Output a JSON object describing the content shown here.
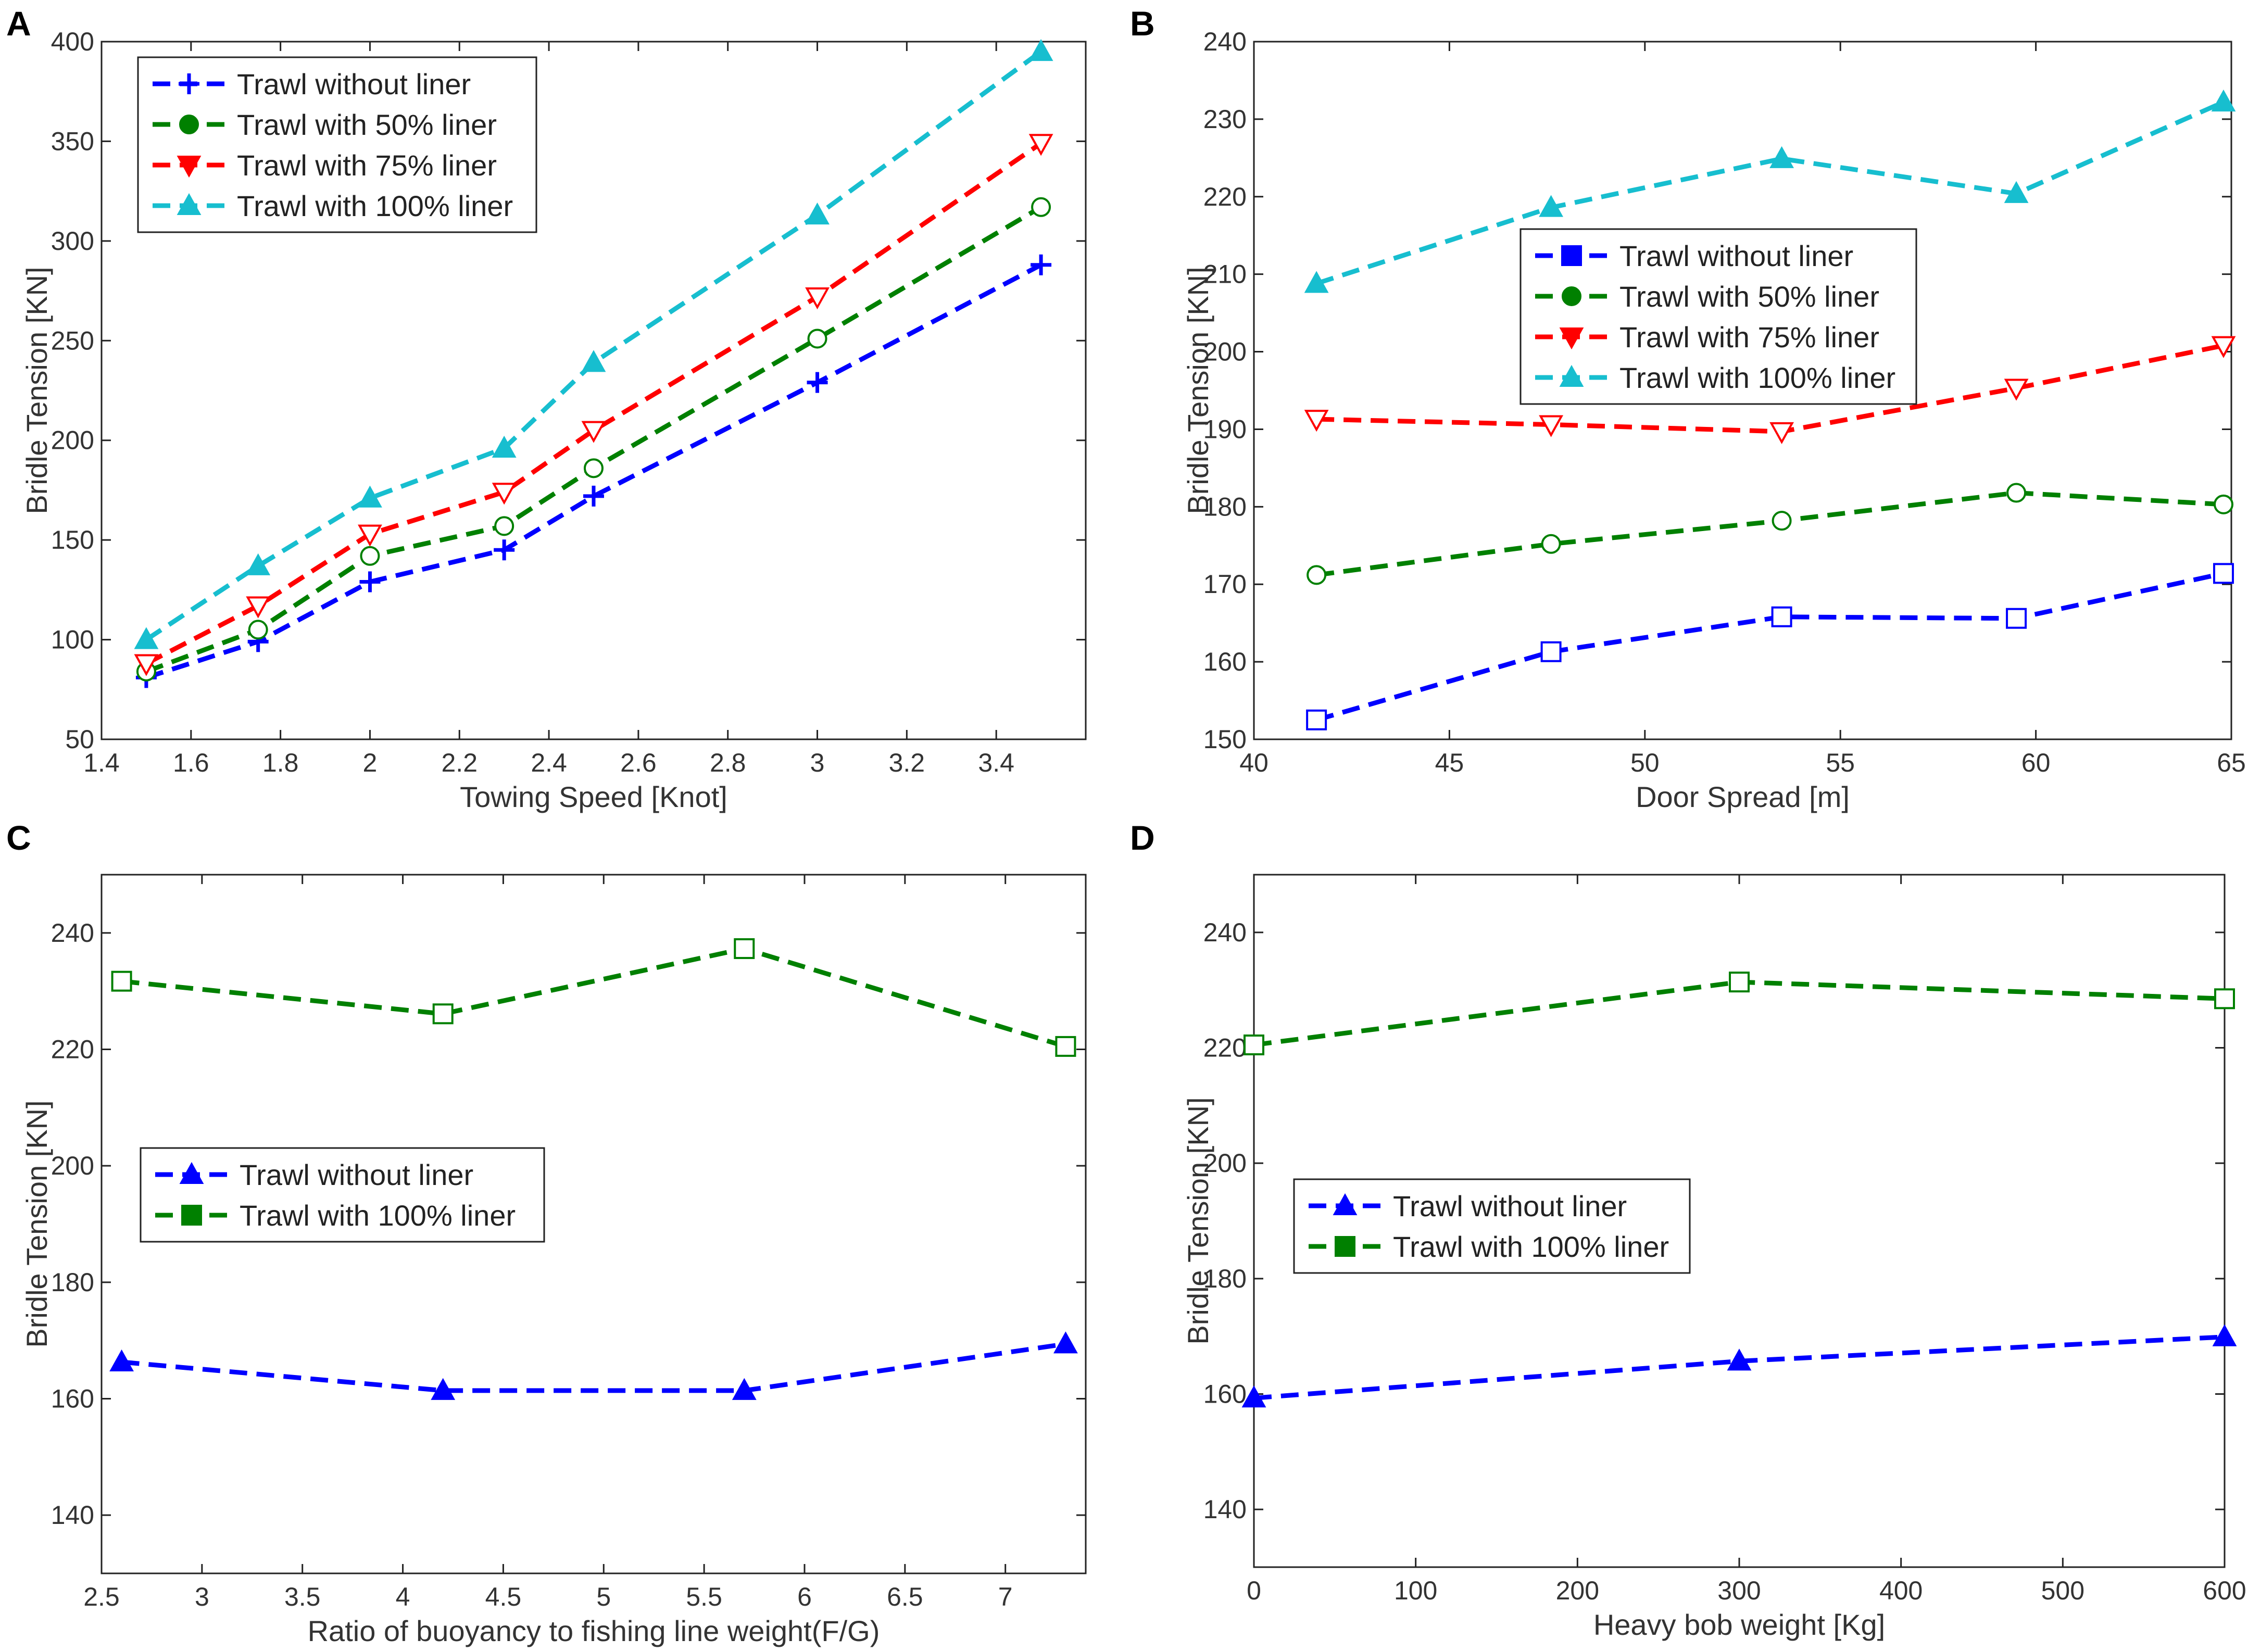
{
  "chart_data": [
    {
      "panel": "A",
      "type": "line",
      "xlabel": "Towing Speed [Knot]",
      "ylabel": "Bridle Tension [KN]",
      "xlim": [
        1.4,
        3.6
      ],
      "ylim": [
        50,
        400
      ],
      "xticks": [
        1.4,
        1.6,
        1.8,
        2.0,
        2.2,
        2.4,
        2.6,
        2.8,
        3.0,
        3.2,
        3.4
      ],
      "xtick_labels": [
        "1.4",
        "1.6",
        "1.8",
        "2",
        "2.2",
        "2.4",
        "2.6",
        "2.8",
        "3",
        "3.2",
        "3.4"
      ],
      "yticks": [
        50,
        100,
        150,
        200,
        250,
        300,
        350,
        400
      ],
      "ytick_labels": [
        "50",
        "100",
        "150",
        "200",
        "250",
        "300",
        "350",
        "400"
      ],
      "legend_position": "top-left",
      "x": [
        1.5,
        1.75,
        2.0,
        2.3,
        2.5,
        3.0,
        3.5
      ],
      "series": [
        {
          "name": "Trawl without liner",
          "color": "#0000ff",
          "marker": "plus",
          "values": [
            81,
            99,
            129,
            145,
            172,
            229,
            288
          ]
        },
        {
          "name": "Trawl with 50% liner",
          "color": "#008000",
          "marker": "circle",
          "values": [
            84,
            105,
            142,
            157,
            186,
            251,
            317
          ]
        },
        {
          "name": "Trawl with 75% liner",
          "color": "#ff0000",
          "marker": "triangle-down",
          "values": [
            88,
            117,
            153,
            174,
            205,
            272,
            349
          ]
        },
        {
          "name": "Trawl with 100% liner",
          "color": "#17becf",
          "marker": "triangle-up",
          "values": [
            100,
            137,
            171,
            196,
            239,
            313,
            395
          ]
        }
      ]
    },
    {
      "panel": "B",
      "type": "line",
      "xlabel": "Door Spread [m]",
      "ylabel": "Bridle Tension [KN]",
      "xlim": [
        40,
        65
      ],
      "ylim": [
        150,
        240
      ],
      "xticks": [
        40,
        45,
        50,
        55,
        60,
        65
      ],
      "xtick_labels": [
        "40",
        "45",
        "50",
        "55",
        "60",
        "65"
      ],
      "yticks": [
        150,
        160,
        170,
        180,
        190,
        200,
        210,
        220,
        230,
        240
      ],
      "ytick_labels": [
        "150",
        "160",
        "170",
        "180",
        "190",
        "200",
        "210",
        "220",
        "230",
        "240"
      ],
      "legend_position": "center",
      "x": [
        41.6,
        47.6,
        53.5,
        59.5,
        64.8
      ],
      "series": [
        {
          "name": "Trawl without liner",
          "color": "#0000ff",
          "marker": "square",
          "values": [
            152.5,
            161.3,
            165.8,
            165.6,
            171.4
          ]
        },
        {
          "name": "Trawl with 50% liner",
          "color": "#008000",
          "marker": "circle",
          "values": [
            171.2,
            175.2,
            178.2,
            181.8,
            180.3
          ]
        },
        {
          "name": "Trawl with 75% liner",
          "color": "#ff0000",
          "marker": "triangle-down",
          "values": [
            191.3,
            190.6,
            189.7,
            195.3,
            200.8
          ]
        },
        {
          "name": "Trawl with 100% liner",
          "color": "#17becf",
          "marker": "triangle-up",
          "values": [
            208.8,
            218.6,
            224.9,
            220.4,
            232.2
          ]
        }
      ]
    },
    {
      "panel": "C",
      "type": "line",
      "xlabel": "Ratio of buoyancy to fishing line weight(F/G)",
      "ylabel": "Bridle Tension [KN]",
      "xlim": [
        2.5,
        7.4
      ],
      "ylim": [
        130,
        250
      ],
      "xticks": [
        2.5,
        3.0,
        3.5,
        4.0,
        4.5,
        5.0,
        5.5,
        6.0,
        6.5,
        7.0
      ],
      "xtick_labels": [
        "2.5",
        "3",
        "3.5",
        "4",
        "4.5",
        "5",
        "5.5",
        "6",
        "6.5",
        "7"
      ],
      "yticks": [
        140,
        160,
        180,
        200,
        220,
        240
      ],
      "ytick_labels": [
        "140",
        "160",
        "180",
        "200",
        "220",
        "240"
      ],
      "legend_position": "center-left",
      "x": [
        2.6,
        4.2,
        5.7,
        7.3
      ],
      "series": [
        {
          "name": "Trawl without liner",
          "color": "#0000ff",
          "marker": "triangle-up",
          "values": [
            166.3,
            161.4,
            161.4,
            169.4
          ]
        },
        {
          "name": "Trawl with 100% liner",
          "color": "#008000",
          "marker": "square",
          "values": [
            231.7,
            226.1,
            237.3,
            220.5
          ]
        }
      ]
    },
    {
      "panel": "D",
      "type": "line",
      "xlabel": "Heavy bob weight [Kg]",
      "ylabel": "Bridle Tension [KN]",
      "xlim": [
        0,
        600
      ],
      "ylim": [
        130,
        250
      ],
      "xticks": [
        0,
        100,
        200,
        300,
        400,
        500,
        600
      ],
      "xtick_labels": [
        "0",
        "100",
        "200",
        "300",
        "400",
        "500",
        "600"
      ],
      "yticks": [
        140,
        160,
        180,
        200,
        220,
        240
      ],
      "ytick_labels": [
        "140",
        "160",
        "180",
        "200",
        "220",
        "240"
      ],
      "legend_position": "center-left",
      "x": [
        0,
        300,
        600
      ],
      "series": [
        {
          "name": "Trawl without liner",
          "color": "#0000ff",
          "marker": "triangle-up",
          "values": [
            159.3,
            165.7,
            169.9
          ]
        },
        {
          "name": "Trawl with 100% liner",
          "color": "#008000",
          "marker": "square",
          "values": [
            220.5,
            231.4,
            228.5
          ]
        }
      ]
    }
  ]
}
